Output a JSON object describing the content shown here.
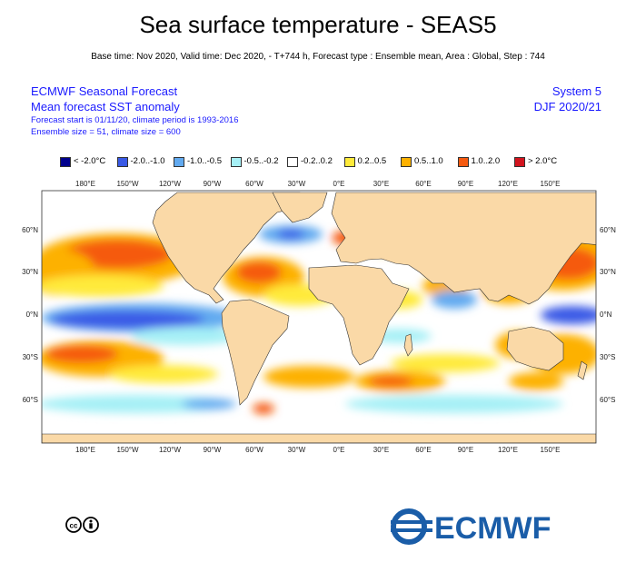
{
  "header": {
    "title": "Sea surface temperature - SEAS5",
    "subtitle": "Base time: Nov 2020, Valid time: Dec 2020, - T+744 h, Forecast type : Ensemble mean, Area : Global, Step : 744"
  },
  "info_left": {
    "line1": "ECMWF Seasonal Forecast",
    "line2": "Mean forecast SST anomaly",
    "line3": "Forecast start is 01/11/20, climate period is 1993-2016",
    "line4": "Ensemble size = 51, climate size = 600"
  },
  "info_right": {
    "line1": "System 5",
    "line2": "DJF 2020/21"
  },
  "legend": [
    {
      "label": "< -2.0°C",
      "color": "#00008c"
    },
    {
      "label": "-2.0..-1.0",
      "color": "#3a5ae6"
    },
    {
      "label": "-1.0..-0.5",
      "color": "#62aaf0"
    },
    {
      "label": "-0.5..-0.2",
      "color": "#a6f0f6"
    },
    {
      "label": "-0.2..0.2",
      "color": "#ffffff"
    },
    {
      "label": "0.2..0.5",
      "color": "#ffea3a"
    },
    {
      "label": "0.5..1.0",
      "color": "#fdb100"
    },
    {
      "label": "1.0..2.0",
      "color": "#f55a10"
    },
    {
      "label": "> 2.0°C",
      "color": "#d2141e"
    }
  ],
  "map": {
    "land_color": "#fad9a7",
    "lon_labels_top": [
      "180°E",
      "150°W",
      "120°W",
      "90°W",
      "60°W",
      "30°W",
      "0°E",
      "30°E",
      "60°E",
      "90°E",
      "120°E",
      "150°E"
    ],
    "lon_labels_bottom": [
      "180°E",
      "150°W",
      "120°W",
      "90°W",
      "60°W",
      "30°W",
      "0°E",
      "30°E",
      "60°E",
      "90°E",
      "120°E",
      "150°E"
    ],
    "lat_labels": [
      "60°N",
      "30°N",
      "0°N",
      "30°S",
      "60°S"
    ]
  },
  "footer": {
    "logo_text": "ECMWF",
    "license_icon": "cc-by-icon"
  }
}
